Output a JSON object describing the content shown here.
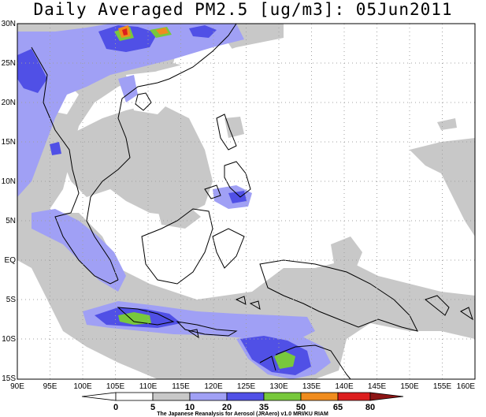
{
  "title": "Daily Averaged PM2.5 [ug/m3]: 05Jun2011",
  "lat_labels": [
    "30N",
    "25N",
    "20N",
    "15N",
    "10N",
    "5N",
    "EQ",
    "5S",
    "10S",
    "15S"
  ],
  "lon_labels": [
    "90E",
    "95E",
    "100E",
    "105E",
    "110E",
    "115E",
    "120E",
    "125E",
    "130E",
    "135E",
    "140E",
    "145E",
    "150E",
    "155E",
    "160E"
  ],
  "colorbar": {
    "levels": [
      "0",
      "5",
      "10",
      "20",
      "35",
      "50",
      "65",
      "80"
    ],
    "colors": [
      "#ffffff",
      "#c8c8c8",
      "#a0a0f5",
      "#5050e6",
      "#78c83c",
      "#f08c1e",
      "#dc1e1e",
      "#8c1414"
    ],
    "credit": "The Japanese Reanalysis for Aerosol (JRAero) v1.0 MRI/KU RIAM"
  }
}
